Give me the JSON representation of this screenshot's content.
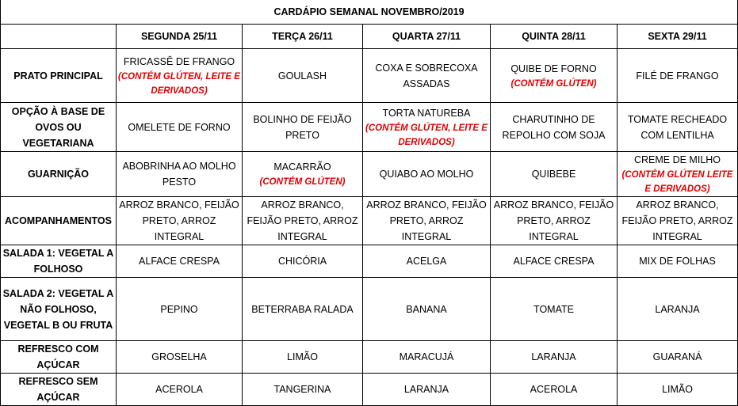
{
  "title": "CARDÁPIO SEMANAL NOVEMBRO/2019",
  "days": [
    "SEGUNDA  25/11",
    "TERÇA 26/11",
    "QUARTA 27/11",
    "QUINTA 28/11",
    "SEXTA 29/11"
  ],
  "accent_note_color": "#e00000",
  "rows": [
    {
      "label": "PRATO PRINCIPAL",
      "cells": [
        {
          "text": "FRICASSÊ DE FRANGO",
          "note": "(CONTÉM GLÚTEN, LEITE E DERIVADOS)"
        },
        {
          "text": "GOULASH"
        },
        {
          "text": "COXA E SOBRECOXA ASSADAS"
        },
        {
          "text": "QUIBE DE FORNO",
          "note": "(CONTÉM GLÚTEN)"
        },
        {
          "text": "FILÉ DE FRANGO"
        }
      ]
    },
    {
      "label": "OPÇÃO À BASE DE OVOS OU VEGETARIANA",
      "cells": [
        {
          "text": "OMELETE DE FORNO"
        },
        {
          "text": "BOLINHO DE FEIJÃO PRETO"
        },
        {
          "text": "TORTA NATUREBA",
          "note": "(CONTÉM GLÚTEN, LEITE E DERIVADOS)"
        },
        {
          "text": "CHARUTINHO DE REPOLHO COM SOJA"
        },
        {
          "text": "TOMATE RECHEADO COM LENTILHA"
        }
      ]
    },
    {
      "label": "GUARNIÇÃO",
      "cells": [
        {
          "text": "ABOBRINHA AO MOLHO PESTO"
        },
        {
          "text": "MACARRÃO",
          "note": "(CONTÉM GLÚTEN)"
        },
        {
          "text": "QUIABO AO MOLHO"
        },
        {
          "text": "QUIBEBE"
        },
        {
          "text": "CREME DE MILHO",
          "note": "(CONTÉM GLÚTEN LEITE E DERIVADOS)"
        }
      ]
    },
    {
      "label": "ACOMPANHAMENTOS",
      "cells": [
        {
          "text": "ARROZ BRANCO, FEIJÃO PRETO, ARROZ INTEGRAL"
        },
        {
          "text": "ARROZ BRANCO, FEIJÃO PRETO, ARROZ INTEGRAL"
        },
        {
          "text": "ARROZ BRANCO, FEIJÃO PRETO, ARROZ INTEGRAL"
        },
        {
          "text": "ARROZ BRANCO, FEIJÃO PRETO, ARROZ INTEGRAL"
        },
        {
          "text": "ARROZ BRANCO, FEIJÃO PRETO, ARROZ INTEGRAL"
        }
      ]
    },
    {
      "label": "SALADA 1: VEGETAL A FOLHOSO",
      "cells": [
        {
          "text": "ALFACE CRESPA"
        },
        {
          "text": "CHICÓRIA"
        },
        {
          "text": "ACELGA"
        },
        {
          "text": "ALFACE CRESPA"
        },
        {
          "text": "MIX DE FOLHAS"
        }
      ]
    },
    {
      "label": "SALADA 2: VEGETAL A NÃO FOLHOSO, VEGETAL B OU FRUTA",
      "cells": [
        {
          "text": "PEPINO"
        },
        {
          "text": "BETERRABA RALADA"
        },
        {
          "text": "BANANA"
        },
        {
          "text": "TOMATE"
        },
        {
          "text": "LARANJA"
        }
      ]
    },
    {
      "label": "REFRESCO COM AÇÚCAR",
      "cells": [
        {
          "text": "GROSELHA"
        },
        {
          "text": "LIMÃO"
        },
        {
          "text": "MARACUJÁ"
        },
        {
          "text": "LARANJA"
        },
        {
          "text": "GUARANÁ"
        }
      ]
    },
    {
      "label": "REFRESCO SEM AÇÚCAR",
      "cells": [
        {
          "text": "ACEROLA"
        },
        {
          "text": "TANGERINA"
        },
        {
          "text": "LARANJA"
        },
        {
          "text": "ACEROLA"
        },
        {
          "text": "LIMÃO"
        }
      ]
    }
  ]
}
